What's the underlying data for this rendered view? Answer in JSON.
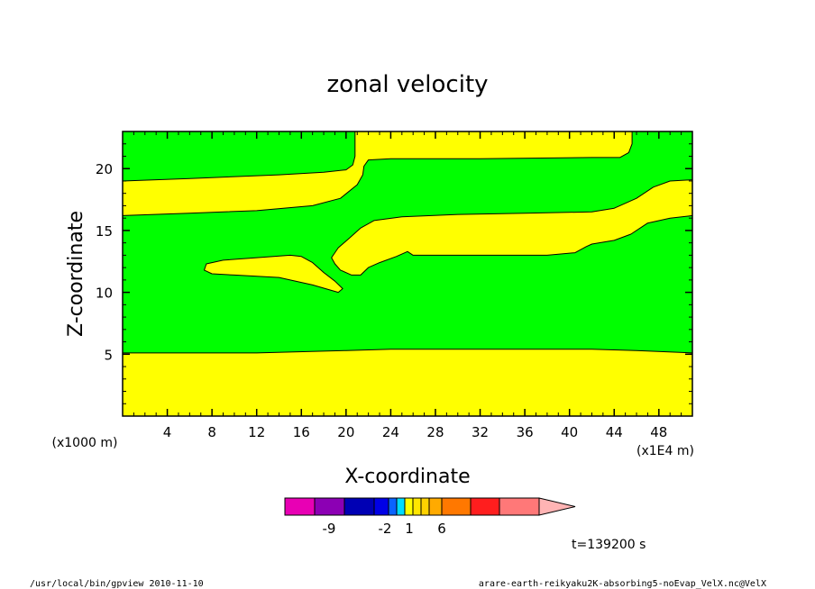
{
  "chart_data": {
    "type": "contour",
    "title": "zonal velocity",
    "xlabel": "X-coordinate",
    "ylabel": "Z-coordinate",
    "x_scale_note": "(x1E4 m)",
    "y_scale_note": "(x1000 m)",
    "xlim": [
      0,
      51
    ],
    "ylim": [
      0,
      23
    ],
    "x_ticks": [
      4,
      8,
      12,
      16,
      20,
      24,
      28,
      32,
      36,
      40,
      44,
      48
    ],
    "y_ticks": [
      5,
      10,
      15,
      20
    ],
    "fill_colors": {
      "background": "#00ff00",
      "positive": "#ffff00"
    },
    "regions": [
      {
        "label": "lower-band",
        "polygon": [
          [
            0,
            0
          ],
          [
            51,
            0
          ],
          [
            51,
            5.1
          ],
          [
            46,
            5.3
          ],
          [
            42,
            5.4
          ],
          [
            36,
            5.4
          ],
          [
            24,
            5.4
          ],
          [
            20,
            5.3
          ],
          [
            12,
            5.1
          ],
          [
            0,
            5.1
          ]
        ]
      },
      {
        "label": "left-upper-band",
        "polygon": [
          [
            0,
            19.0
          ],
          [
            6,
            19.2
          ],
          [
            14,
            19.5
          ],
          [
            18,
            19.7
          ],
          [
            20,
            19.9
          ],
          [
            20.6,
            20.3
          ],
          [
            20.8,
            21.0
          ],
          [
            20.8,
            23
          ],
          [
            45.6,
            23
          ],
          [
            45.6,
            22.0
          ],
          [
            45.3,
            21.3
          ],
          [
            44.5,
            20.9
          ],
          [
            42,
            20.9
          ],
          [
            32,
            20.8
          ],
          [
            24,
            20.8
          ],
          [
            22,
            20.7
          ],
          [
            21.6,
            20.2
          ],
          [
            21.5,
            19.5
          ],
          [
            21.0,
            18.7
          ],
          [
            19.5,
            17.6
          ],
          [
            17,
            17.0
          ],
          [
            12,
            16.6
          ],
          [
            6,
            16.4
          ],
          [
            0,
            16.2
          ]
        ]
      },
      {
        "label": "mid-band",
        "polygon": [
          [
            18.7,
            12.8
          ],
          [
            19.3,
            13.6
          ],
          [
            20.2,
            14.3
          ],
          [
            21.3,
            15.2
          ],
          [
            22.5,
            15.8
          ],
          [
            25,
            16.1
          ],
          [
            30,
            16.3
          ],
          [
            36,
            16.4
          ],
          [
            42,
            16.5
          ],
          [
            44,
            16.8
          ],
          [
            46,
            17.6
          ],
          [
            47.5,
            18.5
          ],
          [
            49,
            19.0
          ],
          [
            51,
            19.1
          ],
          [
            51,
            16.2
          ],
          [
            49,
            16.0
          ],
          [
            47,
            15.6
          ],
          [
            45.5,
            14.7
          ],
          [
            44,
            14.2
          ],
          [
            42,
            13.9
          ],
          [
            41.5,
            13.7
          ],
          [
            40.5,
            13.2
          ],
          [
            38,
            13.0
          ],
          [
            30,
            13.0
          ],
          [
            26,
            13.0
          ],
          [
            25.5,
            13.3
          ],
          [
            24.5,
            12.9
          ],
          [
            23,
            12.4
          ],
          [
            22,
            12.0
          ],
          [
            21.3,
            11.4
          ],
          [
            20.5,
            11.4
          ],
          [
            19.5,
            11.8
          ],
          [
            19.0,
            12.3
          ]
        ]
      },
      {
        "label": "isolated-blob",
        "polygon": [
          [
            7.3,
            11.8
          ],
          [
            7.5,
            12.3
          ],
          [
            9,
            12.6
          ],
          [
            12,
            12.8
          ],
          [
            15,
            13.0
          ],
          [
            16,
            12.9
          ],
          [
            17,
            12.4
          ],
          [
            18,
            11.6
          ],
          [
            19,
            10.9
          ],
          [
            19.7,
            10.3
          ],
          [
            19.3,
            10.0
          ],
          [
            17,
            10.6
          ],
          [
            14,
            11.2
          ],
          [
            10,
            11.4
          ],
          [
            8,
            11.5
          ]
        ]
      }
    ],
    "colorbar": {
      "colors": [
        "#e800b4",
        "#8c00b4",
        "#0000b4",
        "#0000e6",
        "#0a64ff",
        "#00dcff",
        "#ffff00",
        "#ffe600",
        "#ffd200",
        "#ffaa00",
        "#ff7800",
        "#ff1e1e",
        "#ff7878",
        "#ffb4b4"
      ],
      "tick_labels": [
        "-9",
        "-2",
        "1",
        "6"
      ]
    },
    "time_label": "t=139200 s"
  },
  "footer": {
    "left": "/usr/local/bin/gpview  2010-11-10",
    "right": "arare-earth-reikyaku2K-absorbing5-noEvap_VelX.nc@VelX"
  }
}
